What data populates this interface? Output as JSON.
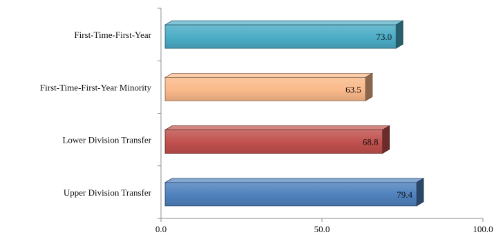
{
  "chart_data": {
    "type": "bar",
    "orientation": "horizontal",
    "style": "3d",
    "categories": [
      "First-Time-First-Year",
      "First-Time-First-Year Minority",
      "Lower Division Transfer",
      "Upper Division Transfer"
    ],
    "values": [
      73.0,
      63.5,
      68.8,
      79.4
    ],
    "value_labels": [
      "73.0",
      "63.5",
      "68.8",
      "79.4"
    ],
    "bar_colors": [
      "#4BACC6",
      "#FAB98A",
      "#C0504D",
      "#4F81BD"
    ],
    "xlim": [
      0,
      100
    ],
    "x_ticks": [
      "0.0",
      "50.0",
      "100.0"
    ],
    "title": "",
    "xlabel": "",
    "ylabel": "",
    "grid": false,
    "legend": "none"
  }
}
